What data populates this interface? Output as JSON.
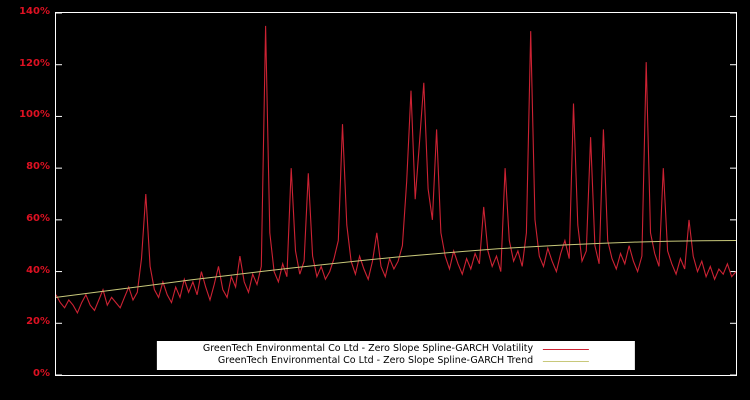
{
  "legend": {
    "entries": [
      {
        "label": "GreenTech Environmental Co Ltd - Zero Slope Spline-GARCH Volatility",
        "color": "#cc2233"
      },
      {
        "label": "GreenTech Environmental Co Ltd - Zero Slope Spline-GARCH Trend",
        "color": "#c8c87a"
      }
    ]
  },
  "axis": {
    "tick_color": "#dd1122",
    "y_ticks": [
      {
        "label": "0%",
        "value": 0
      },
      {
        "label": "20%",
        "value": 20
      },
      {
        "label": "40%",
        "value": 40
      },
      {
        "label": "60%",
        "value": 60
      },
      {
        "label": "80%",
        "value": 80
      },
      {
        "label": "100%",
        "value": 100
      },
      {
        "label": "120%",
        "value": 120
      },
      {
        "label": "140%",
        "value": 140
      }
    ]
  },
  "chart_data": {
    "type": "line",
    "title": "",
    "xlabel": "",
    "ylabel": "",
    "ylim": [
      0,
      140
    ],
    "grid": false,
    "legend_position": "bottom-center",
    "background": "#000000",
    "series": [
      {
        "name": "GreenTech Environmental Co Ltd - Zero Slope Spline-GARCH Volatility",
        "color": "#cc2233",
        "values": [
          31,
          28,
          26,
          29,
          27,
          24,
          28,
          31,
          27,
          25,
          29,
          33,
          27,
          30,
          28,
          26,
          30,
          34,
          29,
          32,
          45,
          70,
          42,
          33,
          30,
          36,
          31,
          28,
          34,
          30,
          37,
          32,
          36,
          31,
          40,
          34,
          29,
          35,
          42,
          33,
          30,
          38,
          34,
          46,
          36,
          32,
          39,
          35,
          42,
          135,
          55,
          40,
          36,
          43,
          38,
          80,
          48,
          39,
          44,
          78,
          46,
          38,
          42,
          37,
          40,
          45,
          52,
          97,
          58,
          44,
          39,
          46,
          41,
          37,
          44,
          55,
          42,
          38,
          45,
          41,
          44,
          50,
          75,
          110,
          68,
          90,
          113,
          72,
          60,
          95,
          55,
          46,
          41,
          48,
          43,
          39,
          45,
          41,
          47,
          43,
          65,
          48,
          42,
          46,
          40,
          80,
          52,
          44,
          48,
          42,
          55,
          133,
          60,
          46,
          42,
          49,
          44,
          40,
          47,
          52,
          45,
          105,
          58,
          44,
          48,
          92,
          50,
          43,
          95,
          52,
          45,
          41,
          47,
          43,
          50,
          44,
          40,
          46,
          121,
          55,
          47,
          42,
          80,
          48,
          43,
          39,
          45,
          41,
          60,
          46,
          40,
          44,
          38,
          42,
          37,
          41,
          39,
          43,
          38,
          40
        ]
      },
      {
        "name": "GreenTech Environmental Co Ltd - Zero Slope Spline-GARCH Trend",
        "color": "#c8c87a",
        "x_fractions": [
          0,
          0.05,
          0.1,
          0.15,
          0.2,
          0.25,
          0.3,
          0.35,
          0.4,
          0.45,
          0.5,
          0.55,
          0.6,
          0.65,
          0.7,
          0.75,
          0.8,
          0.85,
          0.9,
          0.95,
          1
        ],
        "values": [
          30,
          31.7,
          33.4,
          35.1,
          36.8,
          38.4,
          40,
          41.5,
          42.9,
          44.3,
          45.6,
          46.7,
          47.8,
          48.8,
          49.6,
          50.3,
          50.9,
          51.4,
          51.7,
          51.9,
          52
        ]
      }
    ]
  }
}
